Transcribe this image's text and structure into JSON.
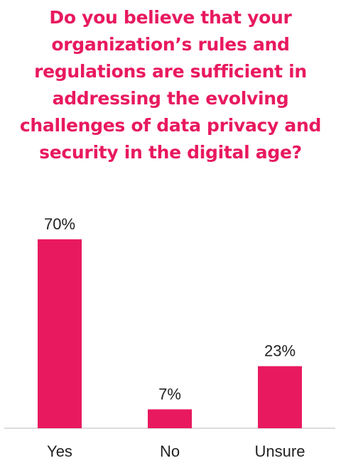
{
  "chart_data": {
    "type": "bar",
    "title": "Do you believe that your organization’s rules and regulations are sufficient in addressing the evolving challenges of data privacy and security in the digital age?",
    "categories": [
      "Yes",
      "No",
      "Unsure"
    ],
    "values": [
      70,
      7,
      23
    ],
    "data_labels": [
      "70%",
      "7%",
      "23%"
    ],
    "ylim": [
      0,
      70
    ],
    "grid": false,
    "legend": "none",
    "bar_color": "#e8195f"
  }
}
